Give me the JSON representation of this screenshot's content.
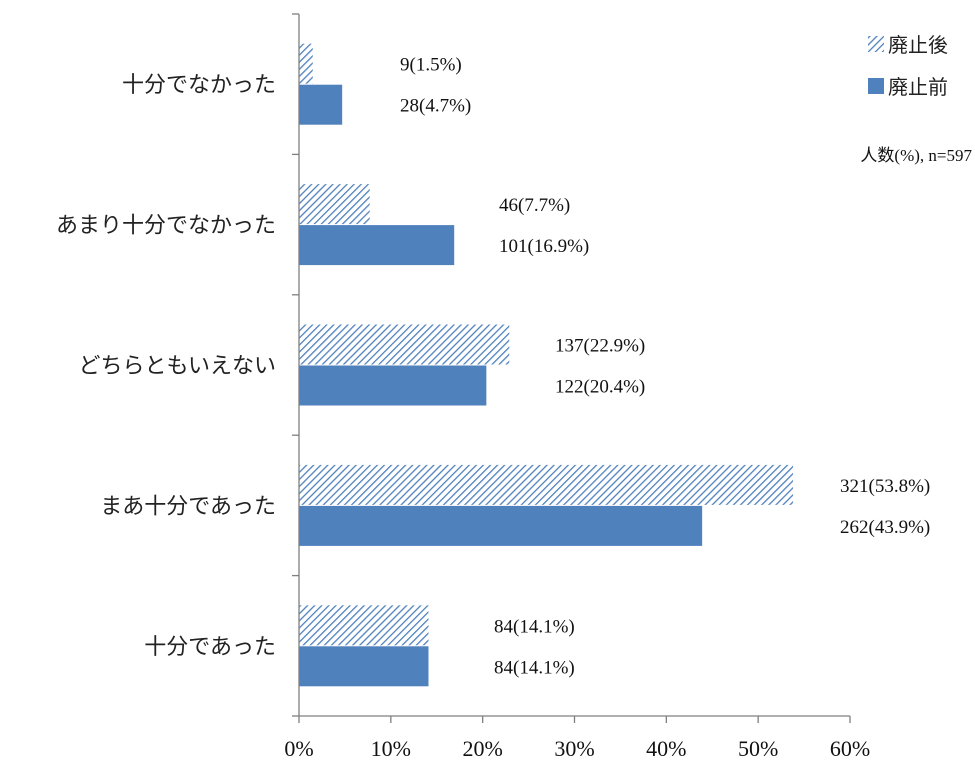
{
  "chart_data": {
    "type": "bar",
    "orientation": "horizontal",
    "categories": [
      "十分でなかった",
      "あまり十分でなかった",
      "どちらともいえない",
      "まあ十分であった",
      "十分であった"
    ],
    "series": [
      {
        "name": "廃止後",
        "values": [
          1.5,
          7.7,
          22.9,
          53.8,
          14.1
        ],
        "labels": [
          "9(1.5%)",
          "46(7.7%)",
          "137(22.9%)",
          "321(53.8%)",
          "84(14.1%)"
        ],
        "pattern": "hatched",
        "color": "#4f81bd"
      },
      {
        "name": "廃止前",
        "values": [
          4.7,
          16.9,
          20.4,
          43.9,
          14.1
        ],
        "labels": [
          "28(4.7%)",
          "101(16.9%)",
          "122(20.4%)",
          "262(43.9%)",
          "84(14.1%)"
        ],
        "pattern": "solid",
        "color": "#4f81bd"
      }
    ],
    "x_ticks": [
      "0%",
      "10%",
      "20%",
      "30%",
      "40%",
      "50%",
      "60%"
    ],
    "xlim": [
      0,
      60
    ],
    "note": "人数(%), n=597",
    "legend_position": "top-right",
    "grid": false
  }
}
